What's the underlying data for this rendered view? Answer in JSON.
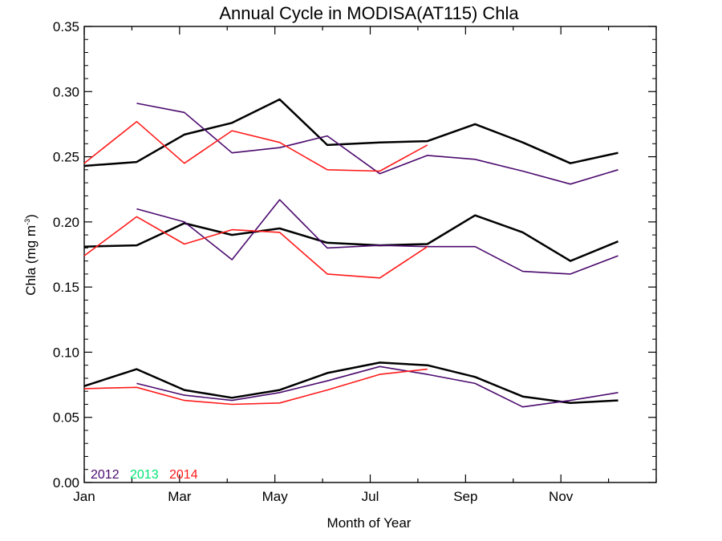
{
  "chart_data": {
    "type": "line",
    "title": "Annual Cycle in MODISA(AT115) Chla",
    "xlabel": "Month of Year",
    "ylabel_main": "Chla (mg m",
    "ylabel_sup": "-3",
    "ylabel_close": ")",
    "xlim": [
      1,
      13
    ],
    "ylim": [
      0,
      0.35
    ],
    "x_ticks": [
      {
        "x": 1,
        "label": "Jan"
      },
      {
        "x": 3,
        "label": "Mar"
      },
      {
        "x": 5,
        "label": "May"
      },
      {
        "x": 7,
        "label": "Jul"
      },
      {
        "x": 9,
        "label": "Sep"
      },
      {
        "x": 11,
        "label": "Nov"
      }
    ],
    "y_ticks": [
      {
        "y": 0.0,
        "label": "0.00"
      },
      {
        "y": 0.05,
        "label": "0.05"
      },
      {
        "y": 0.1,
        "label": "0.10"
      },
      {
        "y": 0.15,
        "label": "0.15"
      },
      {
        "y": 0.2,
        "label": "0.20"
      },
      {
        "y": 0.25,
        "label": "0.25"
      },
      {
        "y": 0.3,
        "label": "0.30"
      },
      {
        "y": 0.35,
        "label": "0.35"
      }
    ],
    "legend": {
      "placement": "bottom-left",
      "entries": [
        {
          "label": "2012",
          "color": "#4b0a6e"
        },
        {
          "label": "2013",
          "color": "#00e676"
        },
        {
          "label": "2014",
          "color": "#ff1a1a"
        }
      ]
    },
    "series": [
      {
        "group": "upper",
        "year": "climatology",
        "color": "#000000",
        "width": 2.5,
        "x": [
          1,
          2.1,
          3.1,
          4.1,
          5.1,
          6.1,
          7.2,
          8.2,
          9.2,
          10.2,
          11.2,
          12.2
        ],
        "y": [
          0.243,
          0.246,
          0.267,
          0.276,
          0.294,
          0.259,
          0.261,
          0.262,
          0.275,
          0.261,
          0.245,
          0.253
        ]
      },
      {
        "group": "upper",
        "year": "2012",
        "color": "#4b0a6e",
        "width": 1.6,
        "x": [
          2.1,
          3.1,
          4.1,
          5.1,
          6.1,
          7.2,
          8.2,
          9.2,
          10.2,
          11.2,
          12.2
        ],
        "y": [
          0.291,
          0.284,
          0.253,
          0.257,
          0.266,
          0.237,
          0.251,
          0.248,
          0.239,
          0.229,
          0.24
        ]
      },
      {
        "group": "upper",
        "year": "2014",
        "color": "#ff1a1a",
        "width": 1.6,
        "x": [
          1,
          2.1,
          3.1,
          4.1,
          5.1,
          6.1,
          7.2,
          8.2
        ],
        "y": [
          0.245,
          0.277,
          0.245,
          0.27,
          0.261,
          0.24,
          0.239,
          0.259
        ]
      },
      {
        "group": "middle",
        "year": "climatology",
        "color": "#000000",
        "width": 2.5,
        "x": [
          1,
          2.1,
          3.1,
          4.1,
          5.1,
          6.1,
          7.2,
          8.2,
          9.2,
          10.2,
          11.2,
          12.2
        ],
        "y": [
          0.181,
          0.182,
          0.199,
          0.19,
          0.195,
          0.184,
          0.182,
          0.183,
          0.205,
          0.192,
          0.17,
          0.185
        ]
      },
      {
        "group": "middle",
        "year": "2012",
        "color": "#4b0a6e",
        "width": 1.6,
        "x": [
          2.1,
          3.1,
          4.1,
          5.1,
          6.1,
          7.2,
          8.2,
          9.2,
          10.2,
          11.2,
          12.2
        ],
        "y": [
          0.21,
          0.2,
          0.171,
          0.217,
          0.18,
          0.182,
          0.181,
          0.181,
          0.162,
          0.16,
          0.174
        ]
      },
      {
        "group": "middle",
        "year": "2014",
        "color": "#ff1a1a",
        "width": 1.6,
        "x": [
          1,
          2.1,
          3.1,
          4.1,
          5.1,
          6.1,
          7.2,
          8.2
        ],
        "y": [
          0.174,
          0.204,
          0.183,
          0.194,
          0.192,
          0.16,
          0.157,
          0.181
        ]
      },
      {
        "group": "lower",
        "year": "climatology",
        "color": "#000000",
        "width": 2.5,
        "x": [
          1,
          2.1,
          3.1,
          4.1,
          5.1,
          6.1,
          7.2,
          8.2,
          9.2,
          10.2,
          11.2,
          12.2
        ],
        "y": [
          0.074,
          0.087,
          0.071,
          0.065,
          0.071,
          0.084,
          0.092,
          0.09,
          0.081,
          0.066,
          0.061,
          0.063
        ]
      },
      {
        "group": "lower",
        "year": "2012",
        "color": "#4b0a6e",
        "width": 1.6,
        "x": [
          2.1,
          3.1,
          4.1,
          5.1,
          6.1,
          7.2,
          8.2,
          9.2,
          10.2,
          11.2,
          12.2
        ],
        "y": [
          0.076,
          0.067,
          0.063,
          0.069,
          0.078,
          0.089,
          0.083,
          0.076,
          0.058,
          0.063,
          0.069
        ]
      },
      {
        "group": "lower",
        "year": "2014",
        "color": "#ff1a1a",
        "width": 1.6,
        "x": [
          1,
          2.1,
          3.1,
          4.1,
          5.1,
          6.1,
          7.2,
          8.2
        ],
        "y": [
          0.072,
          0.073,
          0.063,
          0.06,
          0.061,
          0.071,
          0.083,
          0.087
        ]
      }
    ]
  }
}
